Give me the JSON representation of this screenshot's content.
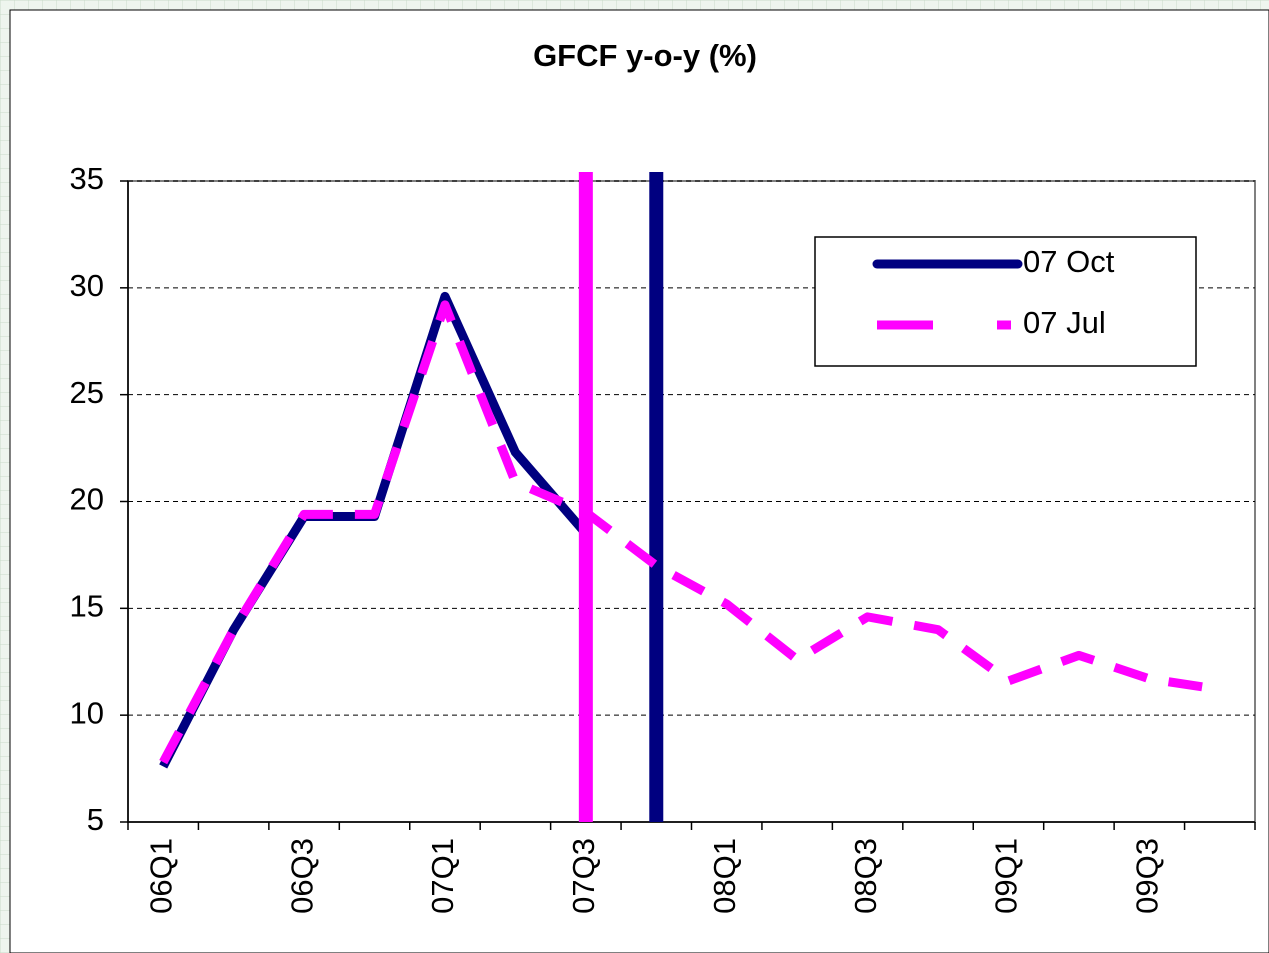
{
  "chart_data": {
    "type": "line",
    "title": "GFCF y-o-y (%)",
    "categories": [
      "06Q1",
      null,
      "06Q3",
      null,
      "07Q1",
      null,
      "07Q3",
      null,
      "08Q1",
      null,
      "08Q3",
      null,
      "09Q1",
      null,
      "09Q3",
      null
    ],
    "series": [
      {
        "name": "07 Oct",
        "color": "#000080",
        "dash": "solid",
        "vline_after": 7,
        "values": [
          7.6,
          14.0,
          19.3,
          19.3,
          29.6,
          22.3,
          18.5,
          null,
          null,
          null,
          null,
          null,
          null,
          null,
          null,
          null
        ]
      },
      {
        "name": "07 Jul",
        "color": "#ff00ff",
        "dash": "dashed",
        "vline_after": 6,
        "values": [
          7.8,
          14.0,
          19.4,
          19.4,
          29.2,
          20.9,
          19.5,
          17.0,
          15.2,
          12.6,
          14.6,
          14.0,
          11.6,
          12.8,
          11.7,
          11.2
        ]
      }
    ],
    "ylim": [
      5,
      35
    ],
    "yticks": [
      5,
      10,
      15,
      20,
      25,
      30,
      35
    ],
    "grid": true,
    "legend": "top-right"
  }
}
